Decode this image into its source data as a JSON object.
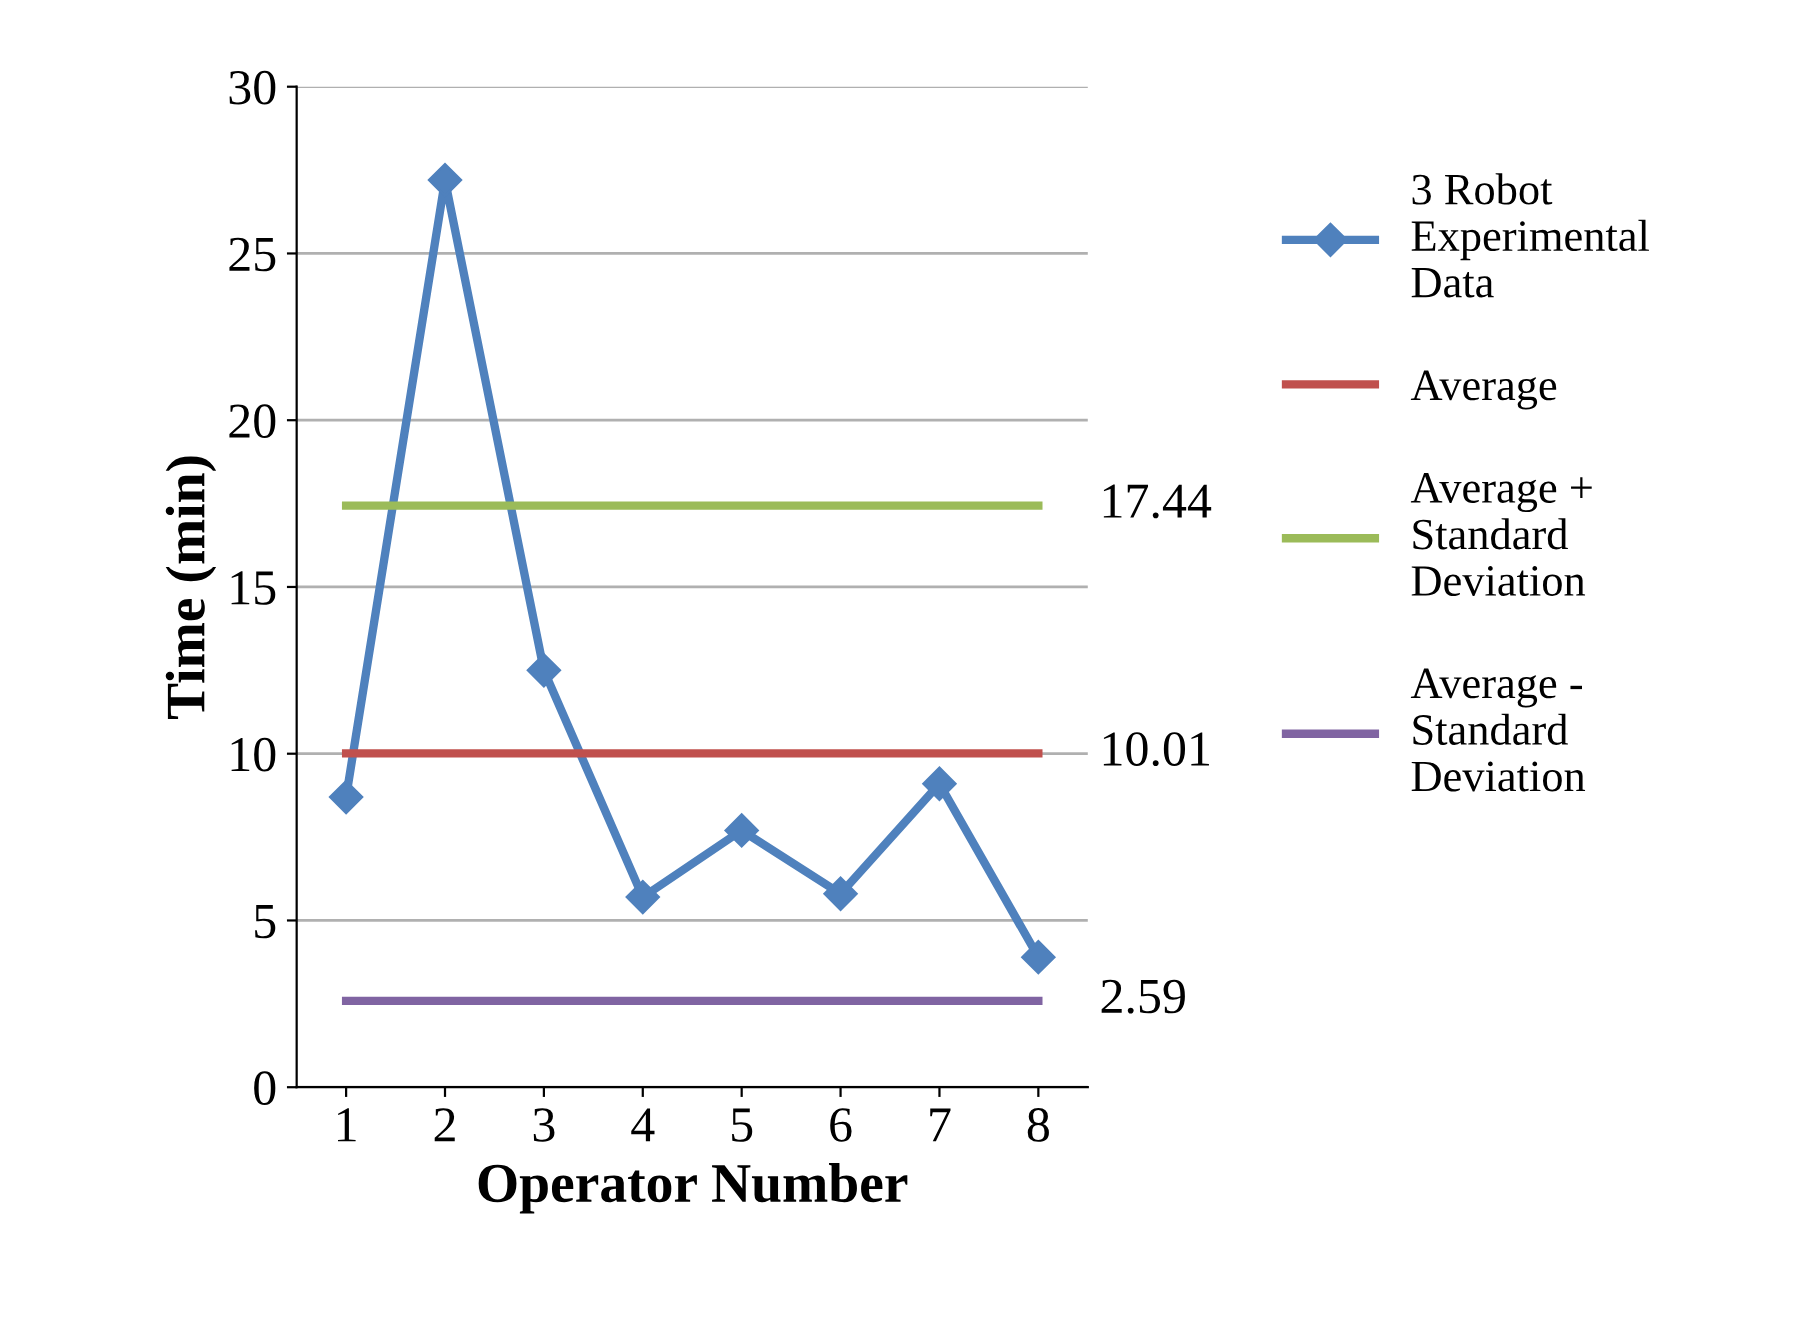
{
  "chart_data": {
    "type": "line",
    "xlabel": "Operator Number",
    "ylabel": "Time (min)",
    "categories": [
      "1",
      "2",
      "3",
      "4",
      "5",
      "6",
      "7",
      "8"
    ],
    "series": [
      {
        "name": "3 Robot Experimental Data",
        "color": "#4f81bd",
        "marker": "diamond",
        "values": [
          8.7,
          27.2,
          12.5,
          5.7,
          7.7,
          5.8,
          9.1,
          3.9
        ]
      },
      {
        "name": "Average",
        "color": "#c0504d",
        "marker": "none",
        "values": [
          10.01,
          10.01,
          10.01,
          10.01,
          10.01,
          10.01,
          10.01,
          10.01
        ],
        "value_labels": [
          null,
          null,
          null,
          null,
          null,
          null,
          null,
          "10.01"
        ]
      },
      {
        "name": "Average + Standard Deviation",
        "color": "#9bbb59",
        "marker": "none",
        "values": [
          17.44,
          17.44,
          17.44,
          17.44,
          17.44,
          17.44,
          17.44,
          17.44
        ],
        "value_labels": [
          null,
          null,
          null,
          null,
          null,
          null,
          null,
          "17.44"
        ]
      },
      {
        "name": "Average - Standard Deviation",
        "color": "#8064a2",
        "marker": "none",
        "values": [
          2.59,
          2.59,
          2.59,
          2.59,
          2.59,
          2.59,
          2.59,
          2.59
        ],
        "value_labels": [
          null,
          null,
          null,
          null,
          null,
          null,
          null,
          "2.59"
        ]
      }
    ],
    "ylim": [
      0,
      30
    ],
    "yticks": [
      0,
      5,
      10,
      15,
      20,
      25,
      30
    ],
    "grid": "y",
    "legend": "right",
    "line_style": "solid"
  }
}
